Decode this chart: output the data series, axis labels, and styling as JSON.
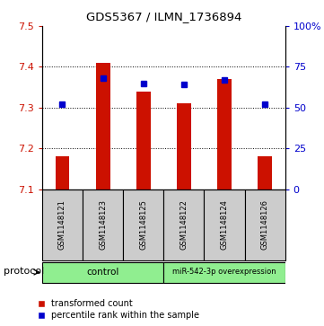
{
  "title": "GDS5367 / ILMN_1736894",
  "samples": [
    "GSM1148121",
    "GSM1148123",
    "GSM1148125",
    "GSM1148122",
    "GSM1148124",
    "GSM1148126"
  ],
  "transformed_counts": [
    7.18,
    7.41,
    7.34,
    7.31,
    7.37,
    7.18
  ],
  "percentile_ranks": [
    52,
    68,
    65,
    64,
    67,
    52
  ],
  "bar_bottom": 7.1,
  "ylim_left": [
    7.1,
    7.5
  ],
  "ylim_right": [
    0,
    100
  ],
  "yticks_left": [
    7.1,
    7.2,
    7.3,
    7.4,
    7.5
  ],
  "yticks_right": [
    0,
    25,
    50,
    75,
    100
  ],
  "ytick_labels_right": [
    "0",
    "25",
    "50",
    "75",
    "100%"
  ],
  "bar_color": "#cc1100",
  "marker_color": "#0000cc",
  "group_labels": [
    "control",
    "miR-542-3p overexpression"
  ],
  "group_color": "#90EE90",
  "protocol_label": "protocol",
  "legend_items": [
    {
      "color": "#cc1100",
      "label": "transformed count"
    },
    {
      "color": "#0000cc",
      "label": "percentile rank within the sample"
    }
  ],
  "sample_box_color": "#cccccc",
  "background_color": "#ffffff",
  "bar_width": 0.35
}
